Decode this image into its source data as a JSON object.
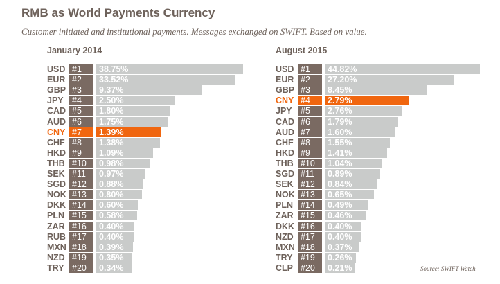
{
  "title": "RMB as World Payments Currency",
  "subtitle": "Customer initiated and institutional payments. Messages exchanged on SWIFT. Based on value.",
  "source": "Source: SWIFT Watch",
  "colors": {
    "highlight": "#f0660f",
    "bar": "#c9cbca",
    "rank": "#7a6a62"
  },
  "chart_data": [
    {
      "type": "bar",
      "title": "January 2014",
      "highlight": "CNY",
      "categories": [
        "USD",
        "EUR",
        "GBP",
        "JPY",
        "CAD",
        "AUD",
        "CNY",
        "CHF",
        "HKD",
        "THB",
        "SEK",
        "SGD",
        "NOK",
        "DKK",
        "PLN",
        "ZAR",
        "RUB",
        "MXN",
        "NZD",
        "TRY"
      ],
      "ranks": [
        "#1",
        "#2",
        "#3",
        "#4",
        "#5",
        "#6",
        "#7",
        "#8",
        "#9",
        "#10",
        "#11",
        "#12",
        "#13",
        "#14",
        "#15",
        "#16",
        "#17",
        "#18",
        "#19",
        "#20"
      ],
      "labels": [
        "38.75%",
        "33.52%",
        "9.37%",
        "2.50%",
        "1.80%",
        "1.75%",
        "1.39%",
        "1.38%",
        "1.09%",
        "0.98%",
        "0.97%",
        "0.88%",
        "0.80%",
        "0.60%",
        "0.58%",
        "0.40%",
        "0.40%",
        "0.39%",
        "0.35%",
        "0.34%"
      ],
      "values": [
        38.75,
        33.52,
        9.37,
        2.5,
        1.8,
        1.75,
        1.39,
        1.38,
        1.09,
        0.98,
        0.97,
        0.88,
        0.8,
        0.6,
        0.58,
        0.4,
        0.4,
        0.39,
        0.35,
        0.34
      ]
    },
    {
      "type": "bar",
      "title": "August 2015",
      "highlight": "CNY",
      "categories": [
        "USD",
        "EUR",
        "GBP",
        "CNY",
        "JPY",
        "CAD",
        "AUD",
        "CHF",
        "HKD",
        "THB",
        "SGD",
        "SEK",
        "NOK",
        "PLN",
        "ZAR",
        "DKK",
        "NZD",
        "MXN",
        "TRY",
        "CLP"
      ],
      "ranks": [
        "#1",
        "#2",
        "#3",
        "#4",
        "#5",
        "#6",
        "#7",
        "#8",
        "#9",
        "#10",
        "#11",
        "#12",
        "#13",
        "#14",
        "#15",
        "#16",
        "#17",
        "#18",
        "#19",
        "#20"
      ],
      "labels": [
        "44.82%",
        "27.20%",
        "8.45%",
        "2.79%",
        "2.76%",
        "1.79%",
        "1.60%",
        "1.55%",
        "1.41%",
        "1.04%",
        "0.89%",
        "0.84%",
        "0.65%",
        "0.49%",
        "0.46%",
        "0.40%",
        "0.40%",
        "0.37%",
        "0.26%",
        "0.21%"
      ],
      "values": [
        44.82,
        27.2,
        8.45,
        2.79,
        2.76,
        1.79,
        1.6,
        1.55,
        1.41,
        1.04,
        0.89,
        0.84,
        0.65,
        0.49,
        0.46,
        0.4,
        0.4,
        0.37,
        0.26,
        0.21
      ]
    }
  ]
}
